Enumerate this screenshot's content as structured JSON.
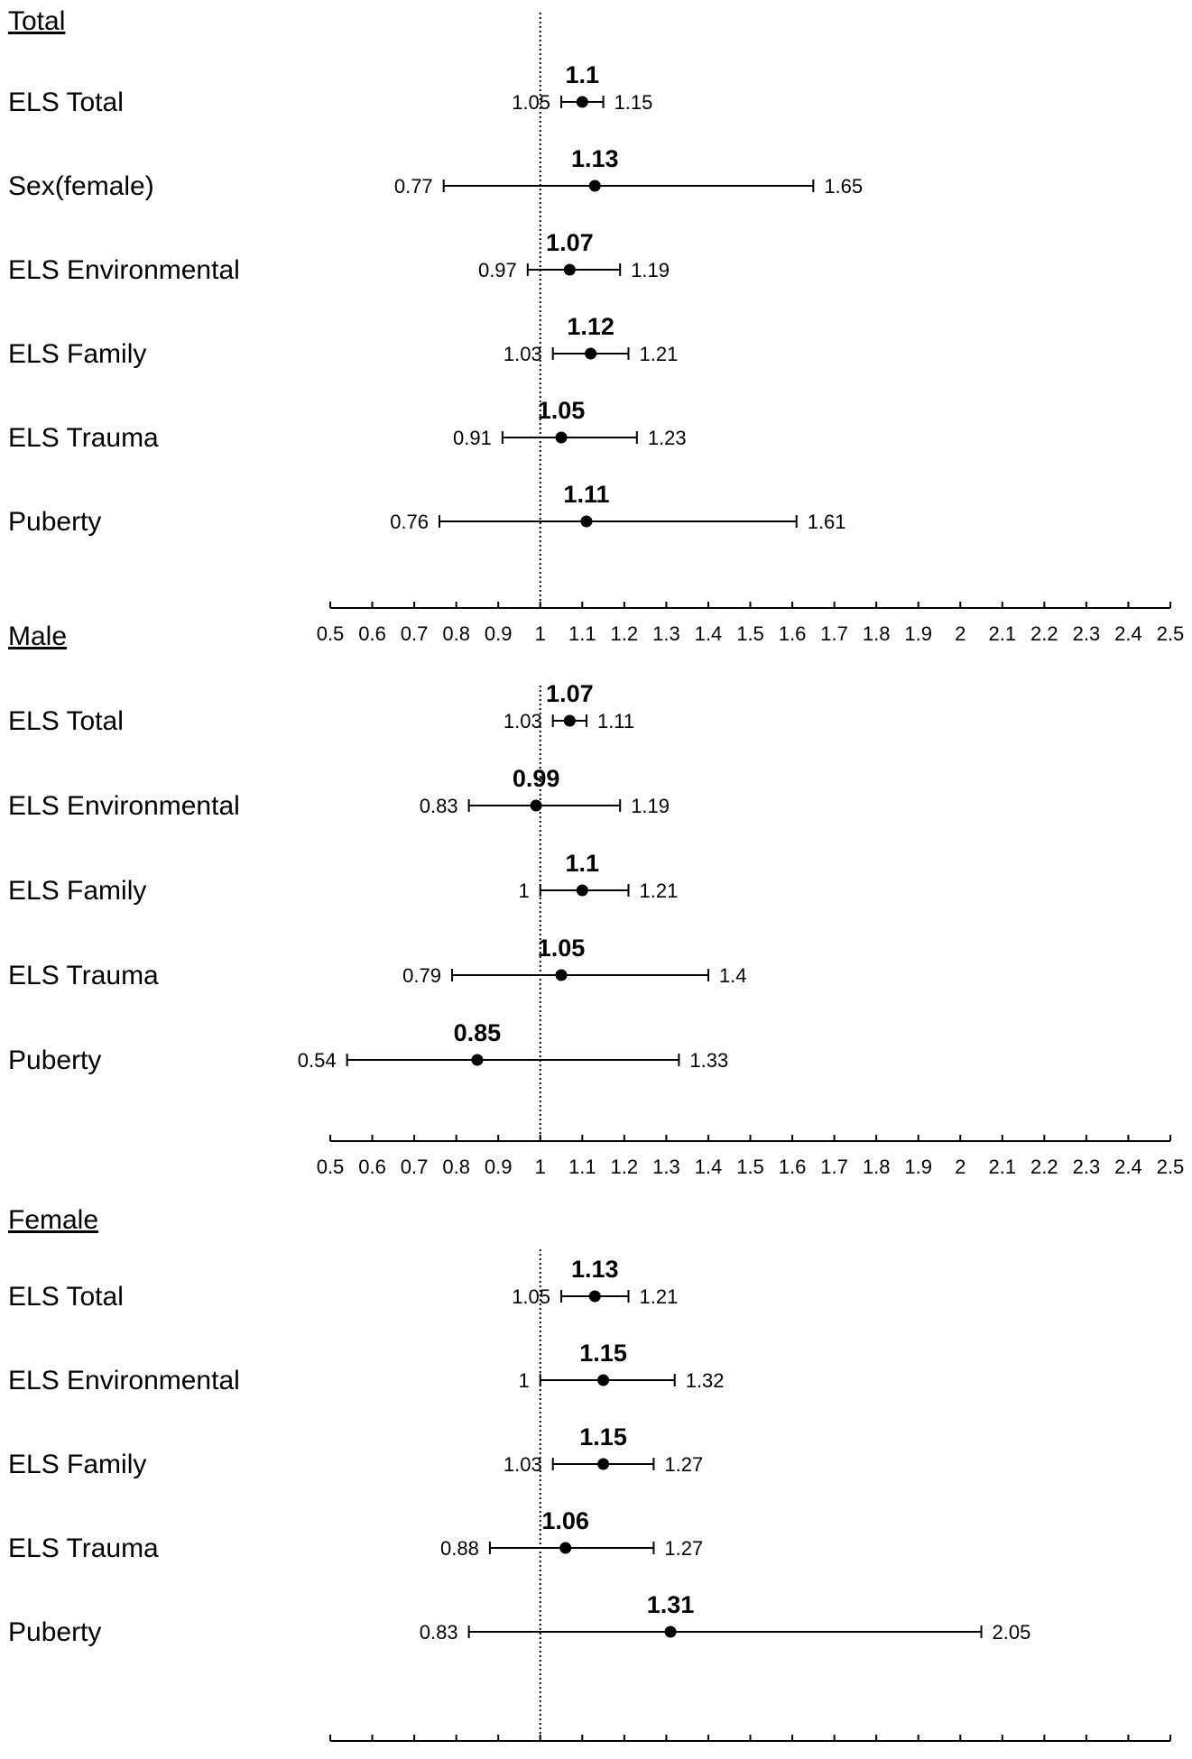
{
  "chart_data": {
    "type": "forest",
    "null_value": 1,
    "xlim": [
      0.5,
      2.5
    ],
    "ticks": [
      "0.5",
      "0.6",
      "0.7",
      "0.8",
      "0.9",
      "1",
      "1.1",
      "1.2",
      "1.3",
      "1.4",
      "1.5",
      "1.6",
      "1.7",
      "1.8",
      "1.9",
      "2",
      "2.1",
      "2.2",
      "2.3",
      "2.4",
      "2.5"
    ],
    "panels": [
      {
        "title": "Total",
        "rows": [
          {
            "label": "ELS Total",
            "estimate": 1.1,
            "lower": 1.05,
            "upper": 1.15,
            "est_text": "1.1",
            "lower_text": "1.05",
            "upper_text": "1.15"
          },
          {
            "label": "Sex(female)",
            "estimate": 1.13,
            "lower": 0.77,
            "upper": 1.65,
            "est_text": "1.13",
            "lower_text": "0.77",
            "upper_text": "1.65"
          },
          {
            "label": "ELS Environmental",
            "estimate": 1.07,
            "lower": 0.97,
            "upper": 1.19,
            "est_text": "1.07",
            "lower_text": "0.97",
            "upper_text": "1.19"
          },
          {
            "label": "ELS Family",
            "estimate": 1.12,
            "lower": 1.03,
            "upper": 1.21,
            "est_text": "1.12",
            "lower_text": "1.03",
            "upper_text": "1.21"
          },
          {
            "label": "ELS Trauma",
            "estimate": 1.05,
            "lower": 0.91,
            "upper": 1.23,
            "est_text": "1.05",
            "lower_text": "0.91",
            "upper_text": "1.23"
          },
          {
            "label": "Puberty",
            "estimate": 1.11,
            "lower": 0.76,
            "upper": 1.61,
            "est_text": "1.11",
            "lower_text": "0.76",
            "upper_text": "1.61"
          }
        ]
      },
      {
        "title": "Male",
        "rows": [
          {
            "label": "ELS Total",
            "estimate": 1.07,
            "lower": 1.03,
            "upper": 1.11,
            "est_text": "1.07",
            "lower_text": "1.03",
            "upper_text": "1.11"
          },
          {
            "label": "ELS Environmental",
            "estimate": 0.99,
            "lower": 0.83,
            "upper": 1.19,
            "est_text": "0.99",
            "lower_text": "0.83",
            "upper_text": "1.19"
          },
          {
            "label": "ELS Family",
            "estimate": 1.1,
            "lower": 1.0,
            "upper": 1.21,
            "est_text": "1.1",
            "lower_text": "1",
            "upper_text": "1.21"
          },
          {
            "label": "ELS Trauma",
            "estimate": 1.05,
            "lower": 0.79,
            "upper": 1.4,
            "est_text": "1.05",
            "lower_text": "0.79",
            "upper_text": "1.4"
          },
          {
            "label": "Puberty",
            "estimate": 0.85,
            "lower": 0.54,
            "upper": 1.33,
            "est_text": "0.85",
            "lower_text": "0.54",
            "upper_text": "1.33"
          }
        ]
      },
      {
        "title": "Female",
        "rows": [
          {
            "label": "ELS Total",
            "estimate": 1.13,
            "lower": 1.05,
            "upper": 1.21,
            "est_text": "1.13",
            "lower_text": "1.05",
            "upper_text": "1.21"
          },
          {
            "label": "ELS Environmental",
            "estimate": 1.15,
            "lower": 1.0,
            "upper": 1.32,
            "est_text": "1.15",
            "lower_text": "1",
            "upper_text": "1.32"
          },
          {
            "label": "ELS Family",
            "estimate": 1.15,
            "lower": 1.03,
            "upper": 1.27,
            "est_text": "1.15",
            "lower_text": "1.03",
            "upper_text": "1.27"
          },
          {
            "label": "ELS Trauma",
            "estimate": 1.06,
            "lower": 0.88,
            "upper": 1.27,
            "est_text": "1.06",
            "lower_text": "0.88",
            "upper_text": "1.27"
          },
          {
            "label": "Puberty",
            "estimate": 1.31,
            "lower": 0.83,
            "upper": 2.05,
            "est_text": "1.31",
            "lower_text": "0.83",
            "upper_text": "2.05"
          }
        ]
      }
    ]
  }
}
